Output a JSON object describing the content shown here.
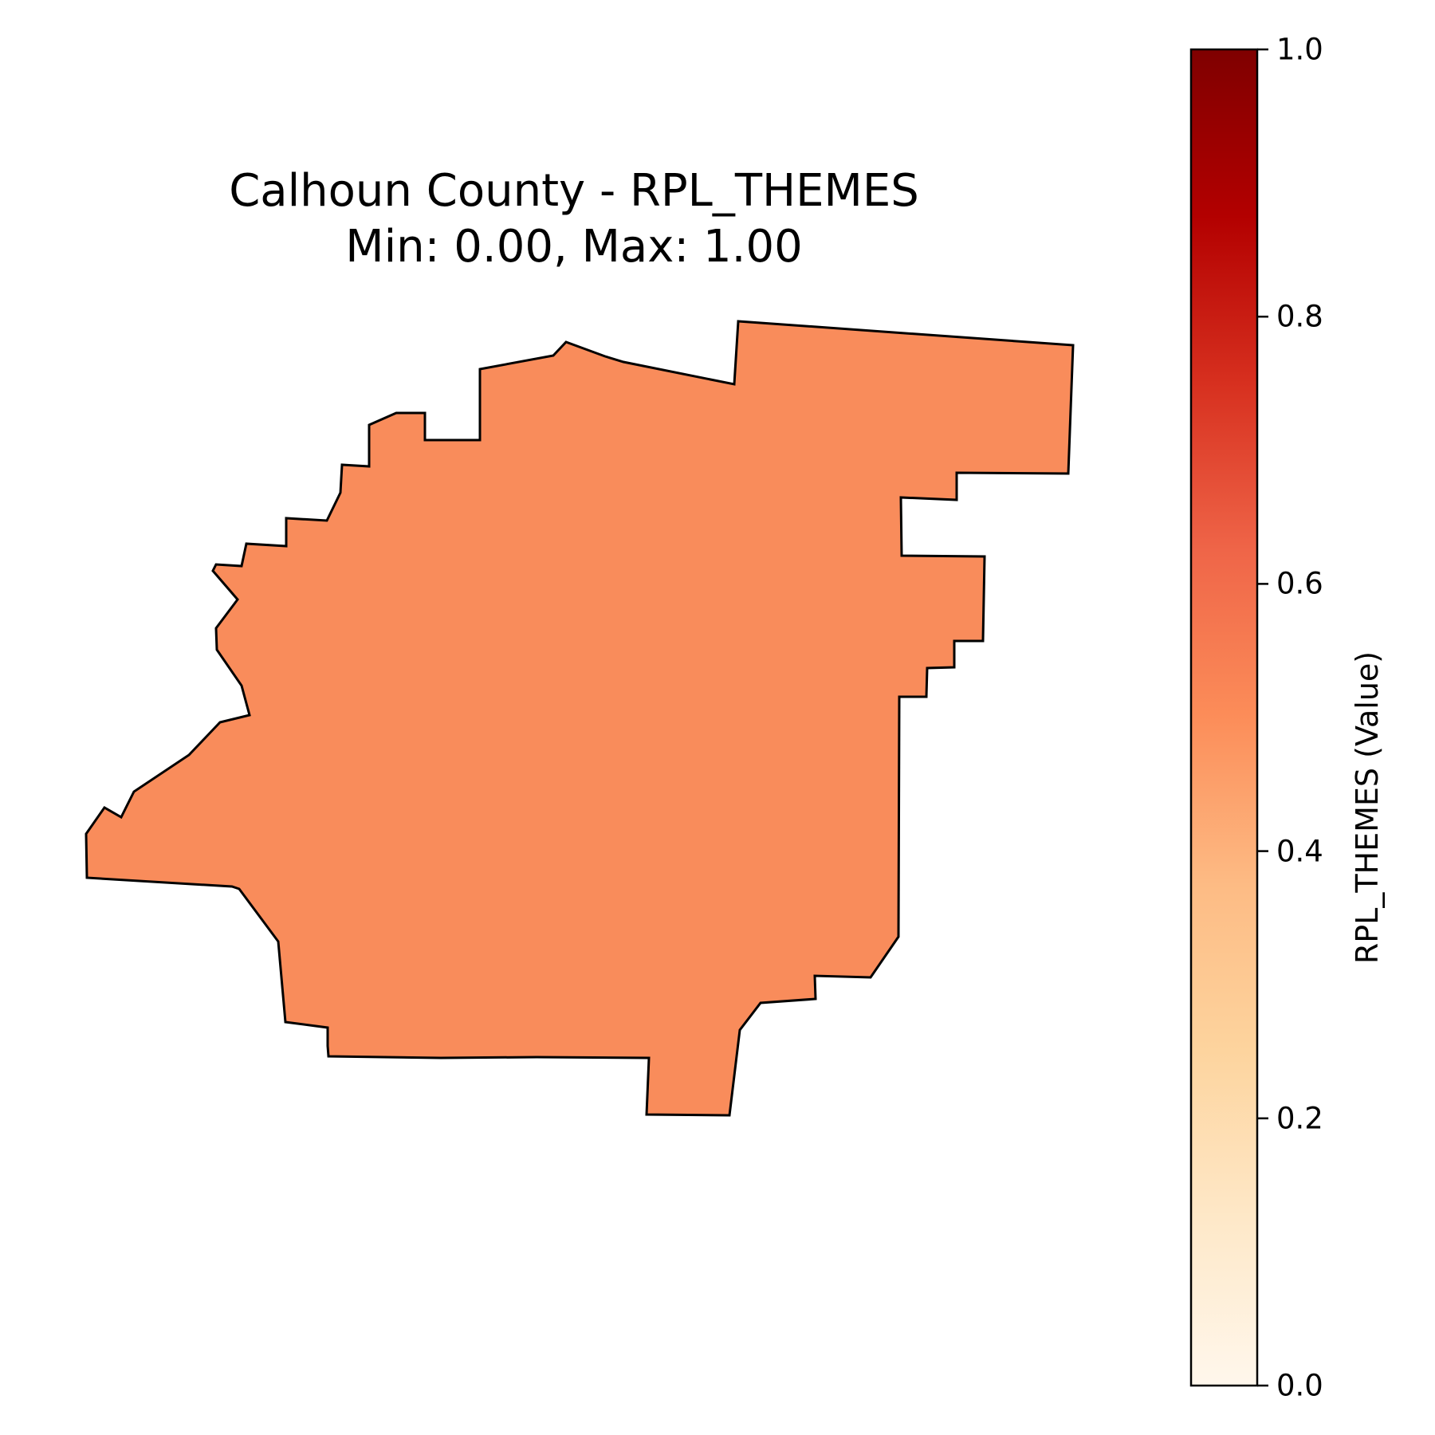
{
  "title": {
    "line1": "Calhoun County - RPL_THEMES",
    "line2": "Min: 0.00, Max: 1.00"
  },
  "map": {
    "region_name": "Calhoun County",
    "value": 0.5,
    "fill_color": "#f98c5b",
    "outline_color": "#000000"
  },
  "colorbar": {
    "label": "RPL_THEMES (Value)",
    "colormap": "OrRd",
    "range": [
      0.0,
      1.0
    ],
    "ticks": [
      {
        "value": 0.0,
        "label": "0.0"
      },
      {
        "value": 0.2,
        "label": "0.2"
      },
      {
        "value": 0.4,
        "label": "0.4"
      },
      {
        "value": 0.6,
        "label": "0.6"
      },
      {
        "value": 0.8,
        "label": "0.8"
      },
      {
        "value": 1.0,
        "label": "1.0"
      }
    ],
    "gradient_stops": [
      "#fff7ec",
      "#fee8c8",
      "#fdd49e",
      "#fdbb84",
      "#fc8d59",
      "#ef6548",
      "#d7301f",
      "#b30000",
      "#7f0000"
    ]
  }
}
